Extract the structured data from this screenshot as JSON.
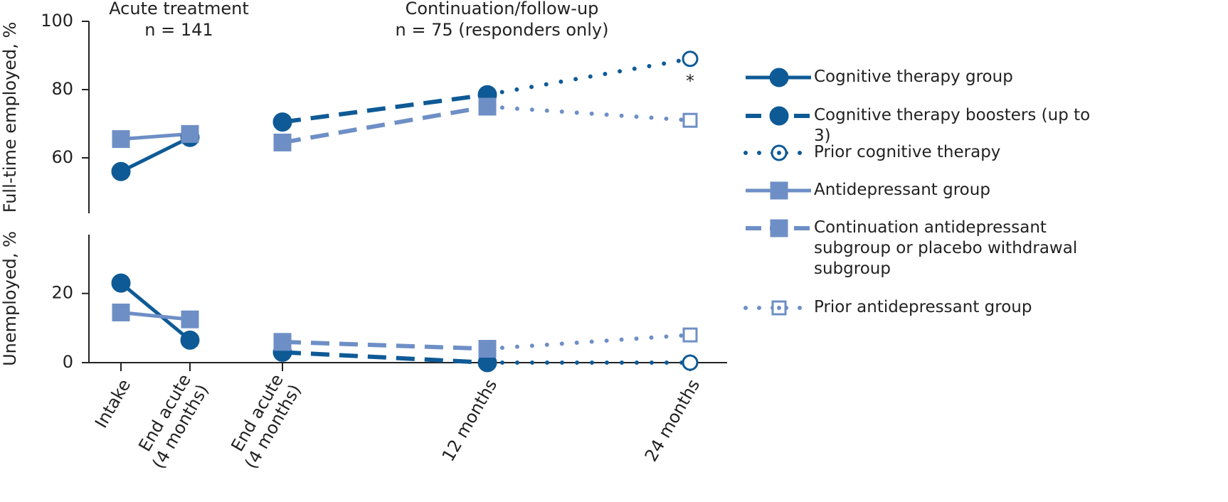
{
  "chart_data": [
    {
      "type": "line",
      "headers": [
        {
          "title": "Acute treatment",
          "subtitle": "n = 141"
        },
        {
          "title": "Continuation/follow-up",
          "subtitle": "n = 75 (responders only)"
        }
      ],
      "ylabel": "Full-time employed, %",
      "ylim": [
        43.75,
        100
      ],
      "yticks": [
        60,
        80,
        100
      ],
      "annotations": [
        {
          "text": "*",
          "x": "24 months"
        }
      ],
      "legend": "right",
      "series": [
        {
          "name": "Cognitive therapy group",
          "color": "#0e5a96",
          "line": "solid",
          "marker": "circle",
          "marker_fill": "filled",
          "values": [
            56,
            66,
            null,
            null,
            null
          ]
        },
        {
          "name": "Cognitive therapy boosters (up to 3)",
          "color": "#0e5a96",
          "line": "dashed",
          "marker": "circle",
          "marker_fill": "filled",
          "values": [
            null,
            null,
            70.5,
            78.5,
            null
          ]
        },
        {
          "name": "Prior cognitive therapy",
          "color": "#0e5a96",
          "line": "dotted",
          "marker": "circle",
          "marker_fill": "hollow",
          "values": [
            null,
            null,
            null,
            78.5,
            89
          ]
        },
        {
          "name": "Antidepressant group",
          "color": "#6e8fc6",
          "line": "solid",
          "marker": "square",
          "marker_fill": "filled",
          "values": [
            65.5,
            67,
            null,
            null,
            null
          ]
        },
        {
          "name": "Continuation antidepressant subgroup or placebo withdrawal subgroup",
          "color": "#6e8fc6",
          "line": "dashed",
          "marker": "square",
          "marker_fill": "filled",
          "values": [
            null,
            null,
            64.5,
            75,
            null
          ]
        },
        {
          "name": "Prior antidepressant group",
          "color": "#6e8fc6",
          "line": "dotted",
          "marker": "square",
          "marker_fill": "hollow",
          "values": [
            null,
            null,
            null,
            75,
            71
          ]
        }
      ]
    },
    {
      "type": "line",
      "ylabel": "Unemployed, %",
      "ylim": [
        0,
        37
      ],
      "yticks": [
        0,
        20
      ],
      "categories": [
        "Intake",
        "End acute (4 months)",
        "End acute (4 months)",
        "12 months",
        "24 months"
      ],
      "series": [
        {
          "color": "#0e5a96",
          "line": "solid",
          "marker": "circle",
          "marker_fill": "filled",
          "values": [
            23,
            6.5,
            null,
            null,
            null
          ]
        },
        {
          "color": "#0e5a96",
          "line": "dashed",
          "marker": "circle",
          "marker_fill": "filled",
          "values": [
            null,
            null,
            3,
            0,
            null
          ]
        },
        {
          "color": "#0e5a96",
          "line": "dotted",
          "marker": "circle",
          "marker_fill": "hollow",
          "values": [
            null,
            null,
            null,
            0,
            0
          ]
        },
        {
          "color": "#6e8fc6",
          "line": "solid",
          "marker": "square",
          "marker_fill": "filled",
          "values": [
            14.5,
            12.5,
            null,
            null,
            null
          ]
        },
        {
          "color": "#6e8fc6",
          "line": "dashed",
          "marker": "square",
          "marker_fill": "filled",
          "values": [
            null,
            null,
            6,
            4,
            null
          ]
        },
        {
          "color": "#6e8fc6",
          "line": "dotted",
          "marker": "square",
          "marker_fill": "hollow",
          "values": [
            null,
            null,
            null,
            4,
            8
          ]
        }
      ]
    }
  ]
}
